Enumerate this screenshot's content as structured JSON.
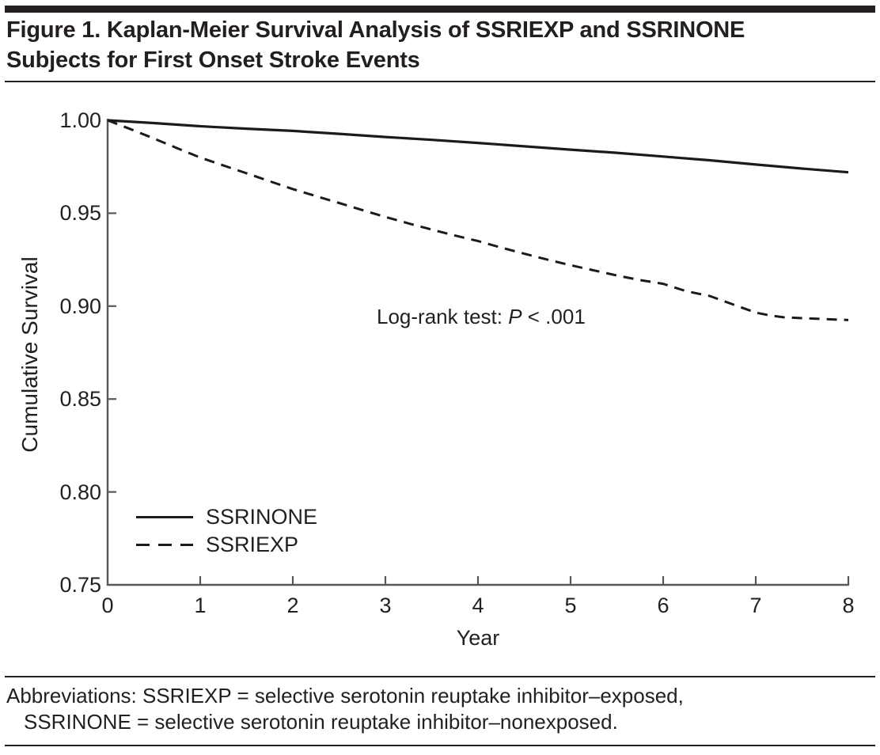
{
  "header": {
    "title_line1": "Figure 1. Kaplan-Meier Survival Analysis of SSRIEXP and SSRINONE",
    "title_line2": "Subjects for First Onset Stroke Events"
  },
  "chart_data": {
    "type": "line",
    "xlabel": "Year",
    "ylabel": "Cumulative Survival",
    "x_range": [
      0,
      8
    ],
    "y_range": [
      0.75,
      1.0
    ],
    "x_ticks": [
      0,
      1,
      2,
      3,
      4,
      5,
      6,
      7,
      8
    ],
    "y_ticks": [
      "1.00",
      "0.95",
      "0.90",
      "0.85",
      "0.80",
      "0.75"
    ],
    "y_tick_values": [
      1.0,
      0.95,
      0.9,
      0.85,
      0.8,
      0.75
    ],
    "grid": false,
    "legend_position": "lower-left",
    "annotation": {
      "prefix": "Log-rank test: ",
      "italic": "P",
      "suffix": " < .001"
    },
    "series": [
      {
        "name": "SSRINONE",
        "style": "solid",
        "points": [
          [
            0,
            1.0
          ],
          [
            0.5,
            0.9985
          ],
          [
            1,
            0.9968
          ],
          [
            1.5,
            0.9955
          ],
          [
            2,
            0.9943
          ],
          [
            2.5,
            0.9927
          ],
          [
            3,
            0.991
          ],
          [
            3.5,
            0.9895
          ],
          [
            4,
            0.9878
          ],
          [
            4.5,
            0.986
          ],
          [
            5,
            0.9842
          ],
          [
            5.5,
            0.9825
          ],
          [
            6,
            0.9805
          ],
          [
            6.5,
            0.9785
          ],
          [
            7,
            0.9762
          ],
          [
            7.5,
            0.974
          ],
          [
            8,
            0.972
          ]
        ]
      },
      {
        "name": "SSRIEXP",
        "style": "dashed",
        "points": [
          [
            0,
            1.0
          ],
          [
            0.25,
            0.9952
          ],
          [
            0.5,
            0.9902
          ],
          [
            0.75,
            0.985
          ],
          [
            1,
            0.98
          ],
          [
            1.25,
            0.9757
          ],
          [
            1.5,
            0.9715
          ],
          [
            1.75,
            0.9672
          ],
          [
            2,
            0.963
          ],
          [
            2.25,
            0.9592
          ],
          [
            2.5,
            0.9555
          ],
          [
            2.75,
            0.9517
          ],
          [
            3,
            0.948
          ],
          [
            3.25,
            0.9445
          ],
          [
            3.5,
            0.9412
          ],
          [
            3.75,
            0.938
          ],
          [
            4,
            0.935
          ],
          [
            4.25,
            0.9315
          ],
          [
            4.5,
            0.9282
          ],
          [
            4.75,
            0.925
          ],
          [
            5,
            0.922
          ],
          [
            5.5,
            0.9165
          ],
          [
            5.75,
            0.914
          ],
          [
            6,
            0.912
          ],
          [
            6.25,
            0.908
          ],
          [
            6.5,
            0.9055
          ],
          [
            6.75,
            0.901
          ],
          [
            7,
            0.8965
          ],
          [
            7.15,
            0.895
          ],
          [
            7.3,
            0.894
          ],
          [
            7.6,
            0.8933
          ],
          [
            8,
            0.8925
          ]
        ]
      }
    ]
  },
  "footnote": {
    "line1": "Abbreviations: SSRIEXP = selective serotonin reuptake inhibitor–exposed,",
    "line2": "SSRINONE = selective serotonin reuptake inhibitor–nonexposed."
  }
}
